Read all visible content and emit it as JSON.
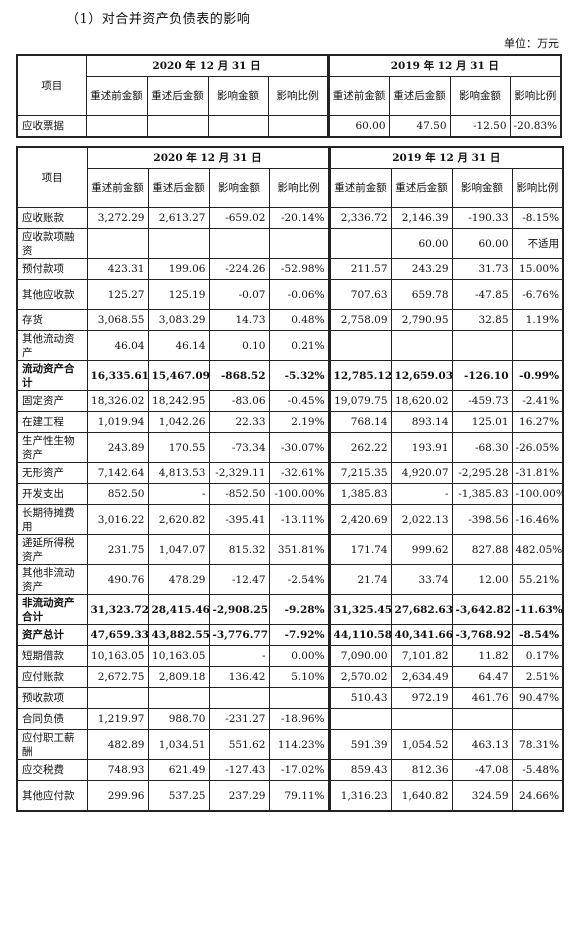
{
  "title": "（1）对合并资产负债表的影响",
  "unit": "单位：万元",
  "headers": {
    "item": "项目",
    "year2020": "2020 年 12 月 31 日",
    "year2019": "2019 年 12 月 31 日",
    "cols": [
      "重述前金额",
      "重述后金额",
      "影响金额",
      "影响比例"
    ]
  },
  "table1": {
    "rows": [
      {
        "label": "应收票据",
        "v": [
          "",
          "",
          "",
          "",
          "60.00",
          "47.50",
          "-12.50",
          "-20.83%"
        ]
      }
    ]
  },
  "table2": {
    "rows": [
      {
        "label": "应收账款",
        "v": [
          "3,272.29",
          "2,613.27",
          "-659.02",
          "-20.14%",
          "2,336.72",
          "2,146.39",
          "-190.33",
          "-8.15%"
        ],
        "bold": false,
        "tall": false
      },
      {
        "label": "应收款项融资",
        "v": [
          "",
          "",
          "",
          "",
          "",
          "60.00",
          "60.00",
          "不适用"
        ],
        "bold": false,
        "tall": true
      },
      {
        "label": "预付款项",
        "v": [
          "423.31",
          "199.06",
          "-224.26",
          "-52.98%",
          "211.57",
          "243.29",
          "31.73",
          "15.00%"
        ],
        "bold": false,
        "tall": false
      },
      {
        "label": "其他应收款",
        "v": [
          "125.27",
          "125.19",
          "-0.07",
          "-0.06%",
          "707.63",
          "659.78",
          "-47.85",
          "-6.76%"
        ],
        "bold": false,
        "tall": true
      },
      {
        "label": "存货",
        "v": [
          "3,068.55",
          "3,083.29",
          "14.73",
          "0.48%",
          "2,758.09",
          "2,790.95",
          "32.85",
          "1.19%"
        ],
        "bold": false,
        "tall": false
      },
      {
        "label": "其他流动资产",
        "v": [
          "46.04",
          "46.14",
          "0.10",
          "0.21%",
          "",
          "",
          "",
          ""
        ],
        "bold": false,
        "tall": true
      },
      {
        "label": "流动资产合计",
        "v": [
          "16,335.61",
          "15,467.09",
          "-868.52",
          "-5.32%",
          "12,785.12",
          "12,659.03",
          "-126.10",
          "-0.99%"
        ],
        "bold": true,
        "tall": true
      },
      {
        "label": "固定资产",
        "v": [
          "18,326.02",
          "18,242.95",
          "-83.06",
          "-0.45%",
          "19,079.75",
          "18,620.02",
          "-459.73",
          "-2.41%"
        ],
        "bold": false,
        "tall": false
      },
      {
        "label": "在建工程",
        "v": [
          "1,019.94",
          "1,042.26",
          "22.33",
          "2.19%",
          "768.14",
          "893.14",
          "125.01",
          "16.27%"
        ],
        "bold": false,
        "tall": false
      },
      {
        "label": "生产性生物资产",
        "v": [
          "243.89",
          "170.55",
          "-73.34",
          "-30.07%",
          "262.22",
          "193.91",
          "-68.30",
          "-26.05%"
        ],
        "bold": false,
        "tall": true
      },
      {
        "label": "无形资产",
        "v": [
          "7,142.64",
          "4,813.53",
          "-2,329.11",
          "-32.61%",
          "7,215.35",
          "4,920.07",
          "-2,295.28",
          "-31.81%"
        ],
        "bold": false,
        "tall": false
      },
      {
        "label": "开发支出",
        "v": [
          "852.50",
          "-",
          "-852.50",
          "-100.00%",
          "1,385.83",
          "-",
          "-1,385.83",
          "-100.00%"
        ],
        "bold": false,
        "tall": false
      },
      {
        "label": "长期待摊费用",
        "v": [
          "3,016.22",
          "2,620.82",
          "-395.41",
          "-13.11%",
          "2,420.69",
          "2,022.13",
          "-398.56",
          "-16.46%"
        ],
        "bold": false,
        "tall": true
      },
      {
        "label": "递延所得税资产",
        "v": [
          "231.75",
          "1,047.07",
          "815.32",
          "351.81%",
          "171.74",
          "999.62",
          "827.88",
          "482.05%"
        ],
        "bold": false,
        "tall": true
      },
      {
        "label": "其他非流动资产",
        "v": [
          "490.76",
          "478.29",
          "-12.47",
          "-2.54%",
          "21.74",
          "33.74",
          "12.00",
          "55.21%"
        ],
        "bold": false,
        "tall": true
      },
      {
        "label": "非流动资产合计",
        "v": [
          "31,323.72",
          "28,415.46",
          "-2,908.25",
          "-9.28%",
          "31,325.45",
          "27,682.63",
          "-3,642.82",
          "-11.63%"
        ],
        "bold": true,
        "tall": true
      },
      {
        "label": "资产总计",
        "v": [
          "47,659.33",
          "43,882.55",
          "-3,776.77",
          "-7.92%",
          "44,110.58",
          "40,341.66",
          "-3,768.92",
          "-8.54%"
        ],
        "bold": true,
        "tall": false
      },
      {
        "label": "短期借款",
        "v": [
          "10,163.05",
          "10,163.05",
          "-",
          "0.00%",
          "7,090.00",
          "7,101.82",
          "11.82",
          "0.17%"
        ],
        "bold": false,
        "tall": false
      },
      {
        "label": "应付账款",
        "v": [
          "2,672.75",
          "2,809.18",
          "136.42",
          "5.10%",
          "2,570.02",
          "2,634.49",
          "64.47",
          "2.51%"
        ],
        "bold": false,
        "tall": false
      },
      {
        "label": "预收款项",
        "v": [
          "",
          "",
          "",
          "",
          "510.43",
          "972.19",
          "461.76",
          "90.47%"
        ],
        "bold": false,
        "tall": false
      },
      {
        "label": "合同负债",
        "v": [
          "1,219.97",
          "988.70",
          "-231.27",
          "-18.96%",
          "",
          "",
          "",
          ""
        ],
        "bold": false,
        "tall": false
      },
      {
        "label": "应付职工薪酬",
        "v": [
          "482.89",
          "1,034.51",
          "551.62",
          "114.23%",
          "591.39",
          "1,054.52",
          "463.13",
          "78.31%"
        ],
        "bold": false,
        "tall": true
      },
      {
        "label": "应交税费",
        "v": [
          "748.93",
          "621.49",
          "-127.43",
          "-17.02%",
          "859.43",
          "812.36",
          "-47.08",
          "-5.48%"
        ],
        "bold": false,
        "tall": false
      },
      {
        "label": "其他应付款",
        "v": [
          "299.96",
          "537.25",
          "237.29",
          "79.11%",
          "1,316.23",
          "1,640.82",
          "324.59",
          "24.66%"
        ],
        "bold": false,
        "tall": true
      }
    ]
  }
}
